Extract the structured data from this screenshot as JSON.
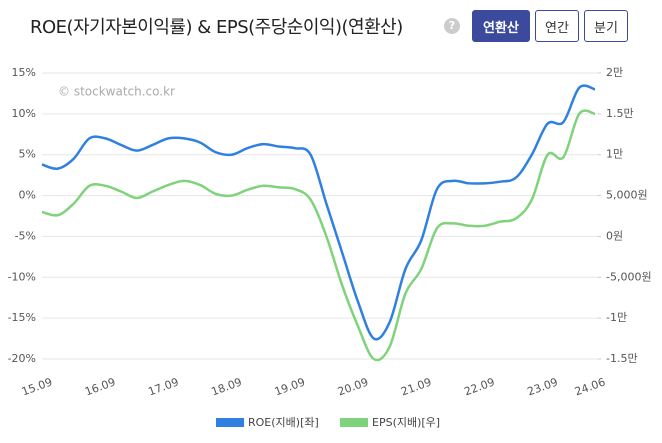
{
  "help": "?",
  "buttons": [
    "연환산",
    "연간",
    "분기"
  ],
  "chart_data": {
    "type": "line",
    "title": "ROE(자기자본이익률) & EPS(주당순이익)(연환산)",
    "watermark": "© stockwatch.co.kr",
    "categories": [
      "15.09",
      null,
      null,
      null,
      "16.09",
      null,
      null,
      null,
      "17.09",
      null,
      null,
      null,
      "18.09",
      null,
      null,
      null,
      "19.09",
      null,
      null,
      null,
      "20.09",
      null,
      null,
      null,
      "21.09",
      null,
      null,
      null,
      "22.09",
      null,
      null,
      null,
      "23.09",
      null,
      null,
      "24.06"
    ],
    "series": [
      {
        "name": "ROE(지배)[좌]",
        "color": "#2f80e0",
        "values": [
          3.8,
          3.3,
          4.5,
          7.0,
          7.0,
          6.2,
          5.5,
          6.2,
          7.0,
          7.0,
          6.5,
          5.3,
          5.0,
          5.8,
          6.3,
          6.0,
          5.8,
          5.0,
          -1.0,
          -7.0,
          -13.0,
          -17.5,
          -15.5,
          -9.0,
          -5.5,
          0.8,
          1.8,
          1.5,
          1.5,
          1.7,
          2.2,
          5.0,
          8.8,
          9.0,
          13.2,
          13.0
        ]
      },
      {
        "name": "EPS(지배)[우]",
        "color": "#7fd37a",
        "axis": "y2",
        "values": [
          3000,
          2600,
          4000,
          6200,
          6200,
          5500,
          4700,
          5500,
          6300,
          6800,
          6300,
          5200,
          5000,
          5700,
          6200,
          6000,
          5800,
          4500,
          0,
          -6000,
          -11000,
          -15000,
          -13500,
          -7000,
          -4000,
          1000,
          1600,
          1300,
          1300,
          1800,
          2200,
          4500,
          10000,
          9700,
          15000,
          15000
        ]
      }
    ],
    "ylim": [
      -20,
      15
    ],
    "yticks": [
      {
        "value": -20,
        "label": "-20%"
      },
      {
        "value": -15,
        "label": "-15%"
      },
      {
        "value": -10,
        "label": "-10%"
      },
      {
        "value": -5,
        "label": "-5%"
      },
      {
        "value": 0,
        "label": "0%"
      },
      {
        "value": 5,
        "label": "5%"
      },
      {
        "value": 10,
        "label": "10%"
      },
      {
        "value": 15,
        "label": "15%"
      }
    ],
    "y2lim": [
      -15000,
      20000
    ],
    "y2ticks": [
      {
        "value": -15000,
        "label": "-1.5만"
      },
      {
        "value": -10000,
        "label": "-1만"
      },
      {
        "value": -5000,
        "label": "-5,000원"
      },
      {
        "value": 0,
        "label": "0원"
      },
      {
        "value": 5000,
        "label": "5,000원"
      },
      {
        "value": 10000,
        "label": "1만"
      },
      {
        "value": 15000,
        "label": "1.5만"
      },
      {
        "value": 20000,
        "label": "2만"
      }
    ],
    "grid": true
  }
}
